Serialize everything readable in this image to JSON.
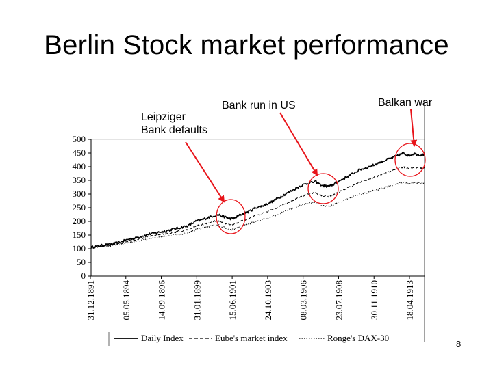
{
  "slide": {
    "title": "Berlin Stock market performance",
    "page_number": "8"
  },
  "annotations": [
    {
      "id": "leipziger",
      "lines": [
        "Leipziger",
        "Bank defaults"
      ]
    },
    {
      "id": "bankrun",
      "lines": [
        "Bank run in US"
      ]
    },
    {
      "id": "balkan",
      "lines": [
        "Balkan war"
      ]
    }
  ],
  "colors": {
    "arrow": "#e8141a",
    "circle": "#e8141a",
    "series": "#000000"
  },
  "chart_data": {
    "type": "line",
    "title": "",
    "xlabel": "",
    "ylabel": "",
    "ylim": [
      0,
      500
    ],
    "yticks": [
      0,
      50,
      100,
      150,
      200,
      250,
      300,
      350,
      400,
      450,
      500
    ],
    "x_tick_labels": [
      "31.12.1891",
      "05.05.1894",
      "14.09.1896",
      "31.01.1899",
      "15.06.1901",
      "24.10.1903",
      "08.03.1906",
      "23.07.1908",
      "30.11.1910",
      "18.04.1913"
    ],
    "x_range_years": [
      1891.99,
      1914.3
    ],
    "series": [
      {
        "name": "Daily Index",
        "style": "solid",
        "points": [
          [
            1891.99,
            105
          ],
          [
            1892.5,
            110
          ],
          [
            1893.0,
            115
          ],
          [
            1893.5,
            118
          ],
          [
            1894.0,
            125
          ],
          [
            1894.5,
            135
          ],
          [
            1895.0,
            140
          ],
          [
            1895.5,
            148
          ],
          [
            1896.0,
            155
          ],
          [
            1896.5,
            160
          ],
          [
            1897.0,
            165
          ],
          [
            1897.5,
            172
          ],
          [
            1898.0,
            178
          ],
          [
            1898.5,
            185
          ],
          [
            1899.0,
            200
          ],
          [
            1899.5,
            208
          ],
          [
            1900.0,
            218
          ],
          [
            1900.5,
            225
          ],
          [
            1901.0,
            215
          ],
          [
            1901.3,
            210
          ],
          [
            1901.6,
            212
          ],
          [
            1902.0,
            225
          ],
          [
            1902.5,
            235
          ],
          [
            1903.0,
            250
          ],
          [
            1903.5,
            258
          ],
          [
            1904.0,
            270
          ],
          [
            1904.5,
            285
          ],
          [
            1905.0,
            300
          ],
          [
            1905.5,
            315
          ],
          [
            1906.0,
            330
          ],
          [
            1906.5,
            340
          ],
          [
            1907.0,
            345
          ],
          [
            1907.5,
            330
          ],
          [
            1907.9,
            328
          ],
          [
            1908.2,
            335
          ],
          [
            1908.5,
            345
          ],
          [
            1909.0,
            360
          ],
          [
            1909.5,
            375
          ],
          [
            1910.0,
            390
          ],
          [
            1910.5,
            398
          ],
          [
            1911.0,
            408
          ],
          [
            1911.5,
            420
          ],
          [
            1912.0,
            430
          ],
          [
            1912.5,
            440
          ],
          [
            1912.9,
            450
          ],
          [
            1913.2,
            440
          ],
          [
            1913.6,
            448
          ],
          [
            1914.0,
            443
          ],
          [
            1914.3,
            445
          ]
        ]
      },
      {
        "name": "Eube's market index",
        "style": "dashed",
        "points": [
          [
            1891.99,
            105
          ],
          [
            1892.5,
            108
          ],
          [
            1893.0,
            112
          ],
          [
            1893.5,
            115
          ],
          [
            1894.0,
            120
          ],
          [
            1894.5,
            128
          ],
          [
            1895.0,
            133
          ],
          [
            1895.5,
            140
          ],
          [
            1896.0,
            146
          ],
          [
            1896.5,
            150
          ],
          [
            1897.0,
            155
          ],
          [
            1897.5,
            160
          ],
          [
            1898.0,
            165
          ],
          [
            1898.5,
            170
          ],
          [
            1899.0,
            183
          ],
          [
            1899.5,
            190
          ],
          [
            1900.0,
            198
          ],
          [
            1900.5,
            203
          ],
          [
            1901.0,
            193
          ],
          [
            1901.3,
            188
          ],
          [
            1901.6,
            190
          ],
          [
            1902.0,
            200
          ],
          [
            1902.5,
            208
          ],
          [
            1903.0,
            222
          ],
          [
            1903.5,
            230
          ],
          [
            1904.0,
            240
          ],
          [
            1904.5,
            252
          ],
          [
            1905.0,
            265
          ],
          [
            1905.5,
            278
          ],
          [
            1906.0,
            290
          ],
          [
            1906.5,
            300
          ],
          [
            1907.0,
            305
          ],
          [
            1907.5,
            292
          ],
          [
            1907.9,
            290
          ],
          [
            1908.2,
            296
          ],
          [
            1908.5,
            305
          ],
          [
            1909.0,
            318
          ],
          [
            1909.5,
            332
          ],
          [
            1910.0,
            345
          ],
          [
            1910.5,
            352
          ],
          [
            1911.0,
            362
          ],
          [
            1911.5,
            372
          ],
          [
            1912.0,
            382
          ],
          [
            1912.5,
            392
          ],
          [
            1912.9,
            400
          ],
          [
            1913.2,
            392
          ],
          [
            1913.6,
            398
          ],
          [
            1914.0,
            395
          ],
          [
            1914.3,
            397
          ]
        ]
      },
      {
        "name": "Ronge's DAX-30",
        "style": "dotted",
        "points": [
          [
            1891.99,
            105
          ],
          [
            1892.5,
            107
          ],
          [
            1893.0,
            110
          ],
          [
            1893.5,
            112
          ],
          [
            1894.0,
            116
          ],
          [
            1894.5,
            122
          ],
          [
            1895.0,
            127
          ],
          [
            1895.5,
            133
          ],
          [
            1896.0,
            138
          ],
          [
            1896.5,
            142
          ],
          [
            1897.0,
            146
          ],
          [
            1897.5,
            150
          ],
          [
            1898.0,
            154
          ],
          [
            1898.5,
            158
          ],
          [
            1899.0,
            170
          ],
          [
            1899.5,
            176
          ],
          [
            1900.0,
            183
          ],
          [
            1900.5,
            187
          ],
          [
            1901.0,
            176
          ],
          [
            1901.3,
            170
          ],
          [
            1901.6,
            172
          ],
          [
            1902.0,
            182
          ],
          [
            1902.5,
            190
          ],
          [
            1903.0,
            200
          ],
          [
            1903.5,
            207
          ],
          [
            1904.0,
            216
          ],
          [
            1904.5,
            226
          ],
          [
            1905.0,
            237
          ],
          [
            1905.5,
            248
          ],
          [
            1906.0,
            258
          ],
          [
            1906.5,
            266
          ],
          [
            1907.0,
            270
          ],
          [
            1907.5,
            258
          ],
          [
            1907.9,
            255
          ],
          [
            1908.2,
            260
          ],
          [
            1908.5,
            268
          ],
          [
            1909.0,
            279
          ],
          [
            1909.5,
            290
          ],
          [
            1910.0,
            300
          ],
          [
            1910.5,
            306
          ],
          [
            1911.0,
            314
          ],
          [
            1911.5,
            322
          ],
          [
            1912.0,
            330
          ],
          [
            1912.5,
            338
          ],
          [
            1912.9,
            345
          ],
          [
            1913.2,
            336
          ],
          [
            1913.6,
            341
          ],
          [
            1914.0,
            339
          ],
          [
            1914.3,
            340
          ]
        ]
      }
    ],
    "legend": {
      "position": "bottom",
      "entries": [
        "Daily Index",
        "Eube's market index",
        "Ronge's DAX-30"
      ]
    },
    "highlight_years": [
      1901.45,
      1907.95,
      1913.75
    ]
  }
}
